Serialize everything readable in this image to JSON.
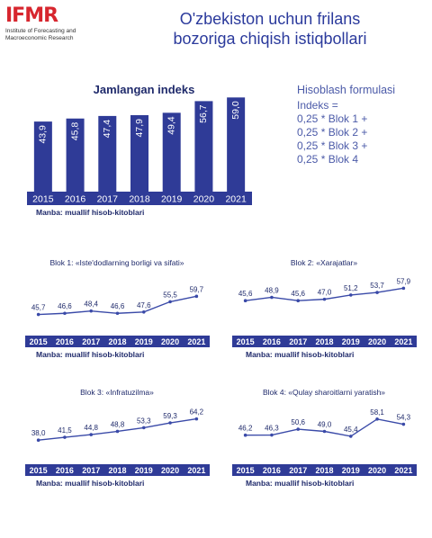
{
  "logo": {
    "text": "IFMR",
    "subtitle_line1": "Institute of Forecasting and",
    "subtitle_line2": "Macroeconomic Research"
  },
  "header": {
    "title_line1": "O'zbekiston uchun frilans",
    "title_line2": "bozoriga chiqish istiqbollari"
  },
  "formula": {
    "title": "Hisoblash formulasi",
    "lines": [
      "Indeks =",
      "0,25 * Blok 1  +",
      "0,25 * Blok 2  +",
      "0,25 * Blok 3  +",
      "0,25 * Blok 4"
    ]
  },
  "colors": {
    "primary": "#2f3b97",
    "axis": "#2f3b97",
    "line": "#3a4aa8"
  },
  "source_text": "Manba: muallif hisob-kitoblari",
  "chart_data": [
    {
      "type": "bar",
      "title": "Jamlangan indeks",
      "categories": [
        "2015",
        "2016",
        "2017",
        "2018",
        "2019",
        "2020",
        "2021"
      ],
      "values": [
        43.9,
        45.8,
        47.4,
        47.9,
        49.4,
        56.7,
        59.0
      ],
      "value_labels": [
        "43,9",
        "45,8",
        "47,4",
        "47,9",
        "49,4",
        "56,7",
        "59,0"
      ],
      "source": "Manba: muallif hisob-kitoblari"
    },
    {
      "type": "line",
      "title": "Blok 1: «Iste'dodlarning borligi va sifati»",
      "categories": [
        "2015",
        "2016",
        "2017",
        "2018",
        "2019",
        "2020",
        "2021"
      ],
      "values": [
        45.7,
        46.6,
        48.4,
        46.6,
        47.6,
        55.5,
        59.7
      ],
      "value_labels": [
        "45,7",
        "46,6",
        "48,4",
        "46,6",
        "47,6",
        "55,5",
        "59,7"
      ],
      "source": "Manba: muallif hisob-kitoblari"
    },
    {
      "type": "line",
      "title": "Blok 2: «Xarajatlar»",
      "categories": [
        "2015",
        "2016",
        "2017",
        "2018",
        "2019",
        "2020",
        "2021"
      ],
      "values": [
        45.6,
        48.9,
        45.6,
        47.0,
        51.2,
        53.7,
        57.9
      ],
      "value_labels": [
        "45,6",
        "48,9",
        "45,6",
        "47,0",
        "51,2",
        "53,7",
        "57,9"
      ],
      "source": "Manba: muallif hisob-kitoblari"
    },
    {
      "type": "line",
      "title": "Blok 3: «Infratuzilma»",
      "categories": [
        "2015",
        "2016",
        "2017",
        "2018",
        "2019",
        "2020",
        "2021"
      ],
      "values": [
        38.0,
        41.5,
        44.8,
        48.8,
        53.3,
        59.3,
        64.2
      ],
      "value_labels": [
        "38,0",
        "41,5",
        "44,8",
        "48,8",
        "53,3",
        "59,3",
        "64,2"
      ],
      "source": "Manba: muallif hisob-kitoblari"
    },
    {
      "type": "line",
      "title": "Blok 4: «Qulay sharoitlarni yaratish»",
      "categories": [
        "2015",
        "2016",
        "2017",
        "2018",
        "2019",
        "2020",
        "2021"
      ],
      "values": [
        46.2,
        46.3,
        50.6,
        49.0,
        45.4,
        58.1,
        54.3
      ],
      "value_labels": [
        "46,2",
        "46,3",
        "50,6",
        "49,0",
        "45,4",
        "58,1",
        "54,3"
      ],
      "source": "Manba: muallif hisob-kitoblari"
    }
  ]
}
